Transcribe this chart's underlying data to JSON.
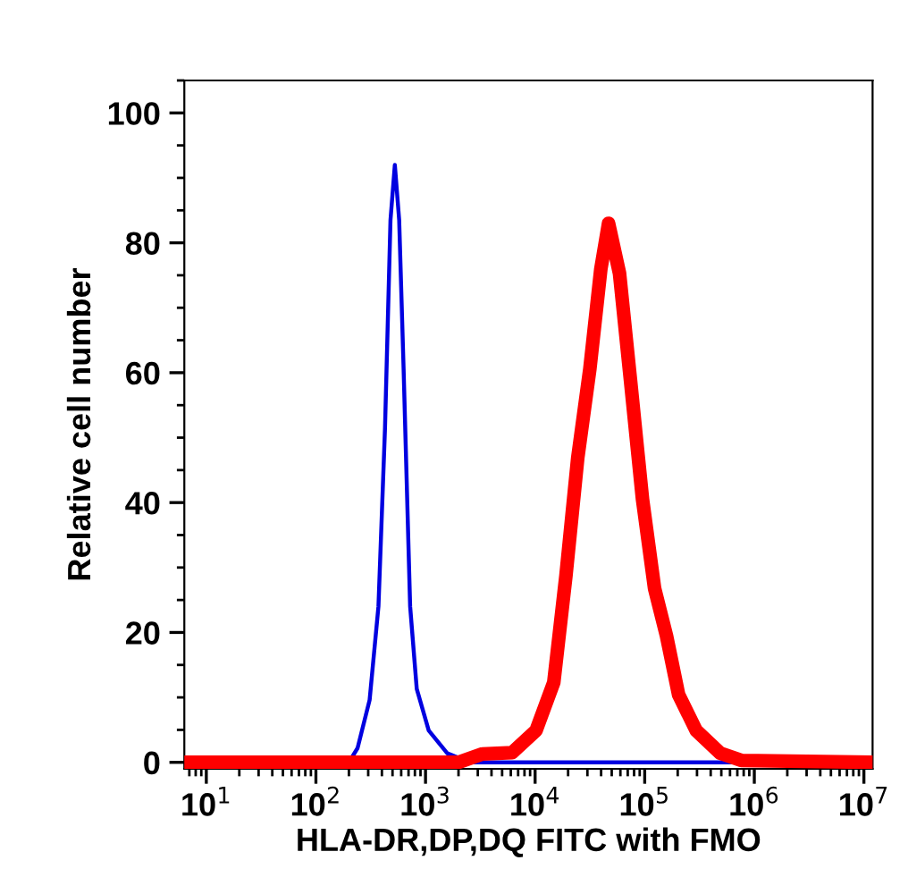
{
  "chart_data": {
    "type": "line",
    "xlabel": "HLA-DR,DP,DQ FITC with FMO",
    "ylabel": "Relative cell number",
    "log": "x",
    "xlim": [
      6.3,
      12000000
    ],
    "ylim": [
      -1,
      105
    ],
    "xticks": [
      {
        "value": 10,
        "label": "10$^{1}$"
      },
      {
        "value": 100,
        "label": "10$^{2}$"
      },
      {
        "value": 1000,
        "label": "10$^{3}$"
      },
      {
        "value": 10000,
        "label": "10$^{4}$"
      },
      {
        "value": 100000,
        "label": "10$^{5}$"
      },
      {
        "value": 1000000,
        "label": "10$^{6}$"
      },
      {
        "value": 10000000,
        "label": "10$^{7}$"
      }
    ],
    "yticks": [
      0,
      20,
      40,
      60,
      80,
      100
    ],
    "grid": false,
    "legend": false,
    "marker": "none",
    "line_style": "solid",
    "series": [
      {
        "color": "#0000e0",
        "x": [
          6.3,
          200,
          240,
          309,
          372,
          427,
          479,
          525,
          575,
          631,
          724,
          832,
          1070,
          1580,
          2570,
          12000000
        ],
        "values": [
          0,
          0,
          2.2,
          9.6,
          24,
          51.5,
          83.5,
          92,
          83.5,
          60.6,
          24,
          11.3,
          4.9,
          1.4,
          0,
          0
        ]
      },
      {
        "color": "#ff0000",
        "x": [
          6.3,
          2000,
          3310,
          6170,
          10200,
          14800,
          19100,
          24500,
          31600,
          39800,
          46800,
          58900,
          74100,
          95500,
          123000,
          158000,
          204000,
          295000,
          490000,
          759000,
          12000000
        ],
        "values": [
          0,
          0,
          1.3,
          1.5,
          4.9,
          12.3,
          28.7,
          46.9,
          60.6,
          76,
          83,
          75.3,
          58.9,
          40.5,
          26.8,
          19.5,
          10.4,
          4.9,
          1.4,
          0.3,
          0
        ]
      }
    ]
  }
}
